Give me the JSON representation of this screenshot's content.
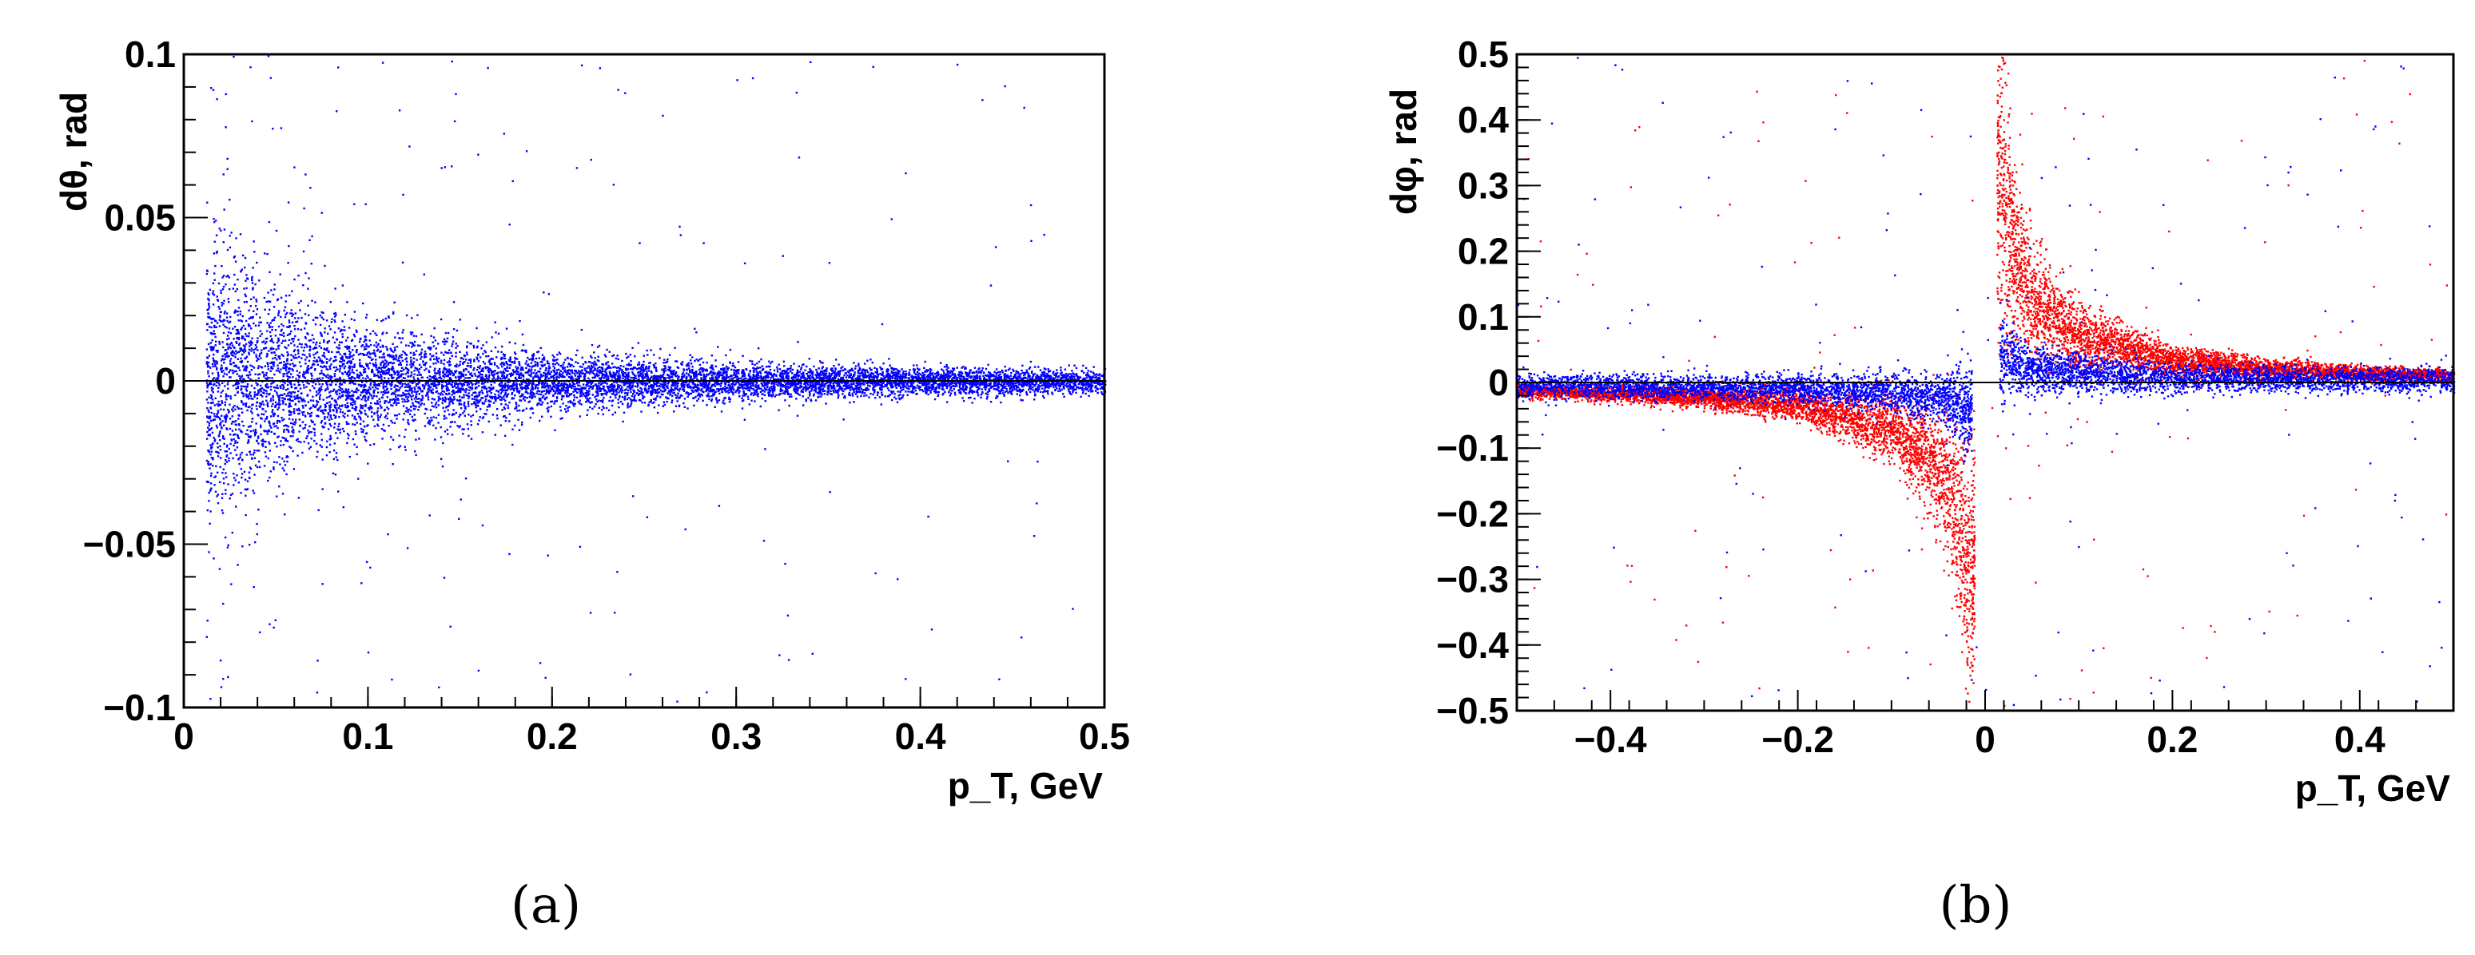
{
  "chart_data": [
    {
      "type": "scatter",
      "panel_label": "(a)",
      "xlabel": "p_T, GeV",
      "ylabel": "dθ, rad",
      "xlim": [
        0,
        0.5
      ],
      "ylim": [
        -0.1,
        0.1
      ],
      "x_ticks": [
        0,
        0.1,
        0.2,
        0.3,
        0.4,
        0.5
      ],
      "x_tick_labels": [
        "0",
        "0.1",
        "0.2",
        "0.3",
        "0.4",
        "0.5"
      ],
      "y_ticks": [
        -0.1,
        -0.05,
        0,
        0.05,
        0.1
      ],
      "y_tick_labels": [
        "−0.1",
        "−0.05",
        "0",
        "0.05",
        "0.1"
      ],
      "grid": false,
      "legend": "none",
      "series": [
        {
          "color": "#0000ff",
          "x_range": [
            0.012,
            0.5
          ],
          "y_center": 0,
          "spread_profile": {
            "x": [
              0.02,
              0.05,
              0.1,
              0.2,
              0.3,
              0.4,
              0.5
            ],
            "y_halfwidth": [
              0.028,
              0.02,
              0.012,
              0.006,
              0.004,
              0.003,
              0.0025
            ]
          },
          "outliers_y_range": [
            -0.1,
            0.1
          ]
        }
      ]
    },
    {
      "type": "scatter",
      "panel_label": "(b)",
      "xlabel": "p_T, GeV",
      "ylabel": "dφ, rad",
      "xlim": [
        -0.5,
        0.5
      ],
      "ylim": [
        -0.5,
        0.5
      ],
      "x_ticks": [
        -0.4,
        -0.2,
        0,
        0.2,
        0.4
      ],
      "x_tick_labels": [
        "−0.4",
        "−0.2",
        "0",
        "0.2",
        "0.4"
      ],
      "y_ticks": [
        -0.5,
        -0.4,
        -0.3,
        -0.2,
        -0.1,
        0,
        0.1,
        0.2,
        0.3,
        0.4,
        0.5
      ],
      "y_tick_labels": [
        "−0.5",
        "−0.4",
        "−0.3",
        "−0.2",
        "−0.1",
        "0",
        "0.1",
        "0.2",
        "0.3",
        "0.4",
        "0.5"
      ],
      "grid": false,
      "legend": "none",
      "series": [
        {
          "color": "#ff0000",
          "band_center_points": [
            {
              "x": -0.5,
              "y": -0.012
            },
            {
              "x": -0.4,
              "y": -0.016
            },
            {
              "x": -0.3,
              "y": -0.022
            },
            {
              "x": -0.2,
              "y": -0.034
            },
            {
              "x": -0.1,
              "y": -0.07
            },
            {
              "x": -0.05,
              "y": -0.13
            },
            {
              "x": -0.03,
              "y": -0.2
            },
            {
              "x": -0.015,
              "y": -0.3
            },
            {
              "x": 0.015,
              "y": 0.3
            },
            {
              "x": 0.03,
              "y": 0.2
            },
            {
              "x": 0.05,
              "y": 0.13
            },
            {
              "x": 0.1,
              "y": 0.07
            },
            {
              "x": 0.2,
              "y": 0.034
            },
            {
              "x": 0.3,
              "y": 0.022
            },
            {
              "x": 0.4,
              "y": 0.016
            },
            {
              "x": 0.5,
              "y": 0.012
            }
          ],
          "outliers_y_range": [
            -0.5,
            0.5
          ]
        },
        {
          "color": "#0000ff",
          "band_center_points": [
            {
              "x": -0.5,
              "y": -0.004
            },
            {
              "x": -0.2,
              "y": -0.008
            },
            {
              "x": -0.05,
              "y": -0.02
            },
            {
              "x": -0.02,
              "y": -0.04
            },
            {
              "x": 0.02,
              "y": 0.04
            },
            {
              "x": 0.05,
              "y": 0.02
            },
            {
              "x": 0.2,
              "y": 0.008
            },
            {
              "x": 0.5,
              "y": 0.004
            }
          ],
          "outliers_y_range": [
            -0.5,
            0.5
          ]
        }
      ]
    }
  ]
}
